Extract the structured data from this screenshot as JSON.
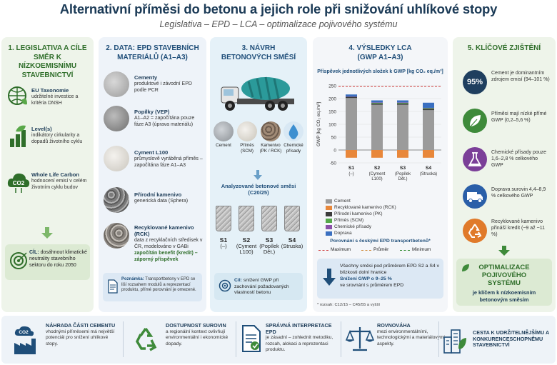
{
  "header": {
    "title": "Alternativní příměsi do betonu a jejich role při snižování uhlíkové stopy",
    "subtitle": "Legislativa – EPD – LCA – optimalizace pojivového systému"
  },
  "p1": {
    "title": "1. LEGISLATIVA A CÍLE SMĚR K NÍZKOEMISNÍMU STAVEBNICTVÍ",
    "items": [
      {
        "name": "EU Taxonomie",
        "desc": "udržitelné investice a kritéria DNSH",
        "icon": "building-leaf-icon"
      },
      {
        "name": "Level(s)",
        "desc": "indikátory cirkularity a dopadů životního cyklu",
        "icon": "bar-chart-leaf-icon"
      },
      {
        "name": "Whole Life Carbon",
        "desc": "hodnocení emisí v celém životním cyklu budov",
        "icon": "co2-cloud-icon"
      }
    ],
    "goal": {
      "strong": "CÍL:",
      "text": "dosáhnout klimatické neutrality stavebního sektoru do roku 2050"
    }
  },
  "p2": {
    "title": "2. DATA: EPD STAVEBNÍCH MATERIÁLŮ (A1–A3)",
    "items": [
      {
        "name": "Cementy",
        "desc": "produktové i závodní EPD podle PCR"
      },
      {
        "name": "Popílky (VEP)",
        "desc": "A1–A2 = započítána pouze fáze A3 (úprava materiálu)"
      },
      {
        "name": "Cyment L100",
        "desc": "průmyslově vyráběná příměs – započítána fáze A1–A3"
      },
      {
        "name": "Přírodní kamenivo",
        "desc": "generická data (Sphera)"
      },
      {
        "name": "Recyklované kamenivo (RCK)",
        "desc": "data z recyklačních středisek v ČR, modelováno v GABi",
        "extra": "započítán benefit (kredit) – záporný příspěvek"
      }
    ],
    "note": {
      "strong": "Poznámka:",
      "text": "Transportbetony v EPD se liší rozsahem modulů a reprezentací produktu, přímé porovnání je omezené."
    }
  },
  "p3": {
    "title": "3. NÁVRH BETONOVÝCH SMĚSÍ",
    "components": [
      {
        "label": "Cement",
        "color": "#9fa4a8"
      },
      {
        "label": "Příměs (SCM)",
        "color": "#d9d6cf"
      },
      {
        "label": "Kamenivo (PK / RCK)",
        "color": "#8d7b6b"
      },
      {
        "label": "Chemické přísady",
        "color": "#3d8fd0"
      }
    ],
    "mixes_title": "Analyzované betonové směsi (C20/25)",
    "mixes": [
      {
        "id": "S1",
        "sub": "(–)"
      },
      {
        "id": "S2",
        "sub": "(Cyment L100)"
      },
      {
        "id": "S3",
        "sub": "(Popílek Dět.)"
      },
      {
        "id": "S4",
        "sub": "(Struska)"
      }
    ],
    "goal": {
      "strong": "Cíl:",
      "text": "snížení GWP při zachování požadovaných vlastností betonu"
    }
  },
  "p4": {
    "title": "4. VÝSLEDKY LCA (GWP A1–A3)",
    "comparison_title": "Porovnání s českými EPD transportbetonů*",
    "comparison": [
      "Maximum",
      "Průměr",
      "Minimum"
    ],
    "conclusion": "Všechny směsi pod průměrem EPD S2 a S4 v blízkosti dolní hranice",
    "conclusion_strong": "Snížení GWP o 9–25 %",
    "conclusion_tail": "ve srovnání s průměrem EPD",
    "footnote": "* rozsah: C12/15 – C45/55 a vyšší"
  },
  "chart_data": {
    "type": "bar",
    "stacked": true,
    "title": "Příspěvek jednotlivých složek k GWP [kg CO₂ eq./m³]",
    "ylabel": "GWP [kg CO₂ eq./m³]",
    "ylim": [
      -50,
      250
    ],
    "yticks": [
      "250",
      "200",
      "150",
      "100",
      "50",
      "0",
      "-50"
    ],
    "categories": [
      "S1 (–)",
      "S2 (Cyment L100)",
      "S3 (Popílek Dět.)",
      "S4 (Struska)"
    ],
    "series": [
      {
        "name": "Cement",
        "color": "#9b9b9b",
        "values": [
          202,
          176,
          176,
          155
        ]
      },
      {
        "name": "Recyklované kamenivo (RCK)",
        "color": "#e8873a",
        "values": [
          -30,
          -30,
          -30,
          -30
        ]
      },
      {
        "name": "Přírodní kamenivo (PK)",
        "color": "#3c3c3c",
        "values": [
          5,
          5,
          5,
          5
        ]
      },
      {
        "name": "Příměs (SCM)",
        "color": "#55a84a",
        "values": [
          0,
          3,
          3,
          3
        ]
      },
      {
        "name": "Chemické přísady",
        "color": "#8a4fa8",
        "values": [
          1,
          1,
          1,
          1
        ]
      },
      {
        "name": "Doprava",
        "color": "#3a6fc0",
        "values": [
          8,
          8,
          8,
          20
        ]
      }
    ],
    "reference_lines": [
      {
        "name": "Maximum",
        "value": 247,
        "color": "#d04040"
      }
    ],
    "legend": "below"
  },
  "p5": {
    "title": "5. KLÍČOVÉ ZJIŠTĚNÍ",
    "items": [
      {
        "badge": "95%",
        "text": "Cement je dominantním zdrojem emisí (94–101 %)",
        "icon": "percent-badge"
      },
      {
        "text": "Příměsi mají nízké přímé GWP (0,2–5,6 %)",
        "icon": "leaf-icon"
      },
      {
        "text": "Chemické přísady pouze 1,6–2,8 % celkového GWP",
        "icon": "flask-icon"
      },
      {
        "text": "Doprava surovin 4,4–8,9 % celkového GWP",
        "icon": "truck-icon"
      },
      {
        "text": "Recyklované kamenivo přináší kredit (~9 až ~11 %)",
        "icon": "recycle-icon"
      }
    ],
    "final1": "OPTIMALIZACE POJIVOVÉHO SYSTÉMU",
    "final2": "je klíčem k nízkoemisním betonovým směsím"
  },
  "bottom": [
    {
      "title": "NÁHRADA ČÁSTI CEMENTU",
      "text": "vhodnými příměsemi má největší potenciál pro snížení uhlíkové stopy.",
      "icon": "co2-factory-icon"
    },
    {
      "title": "DOSTUPNOST SUROVIN",
      "text": "a regionální kontext ovlivňují environmentální i ekonomické dopady.",
      "icon": "recycle-icon"
    },
    {
      "title": "SPRÁVNÁ INTERPRETACE EPD",
      "text": "je zásadní – zohlednit metodiku, rozsah, alokaci a reprezentaci produktu.",
      "icon": "document-check-icon"
    },
    {
      "title": "ROVNOVÁHA",
      "text": "mezi environmentálními, technologickými a materiálovými aspekty.",
      "icon": "scales-icon"
    },
    {
      "title": "CESTA K UDRŽITELNĚJŠÍMU A KONKURENCESCHOPNĚMU STAVEBNICTVÍ",
      "text": "",
      "icon": "city-leaf-icon"
    }
  ]
}
